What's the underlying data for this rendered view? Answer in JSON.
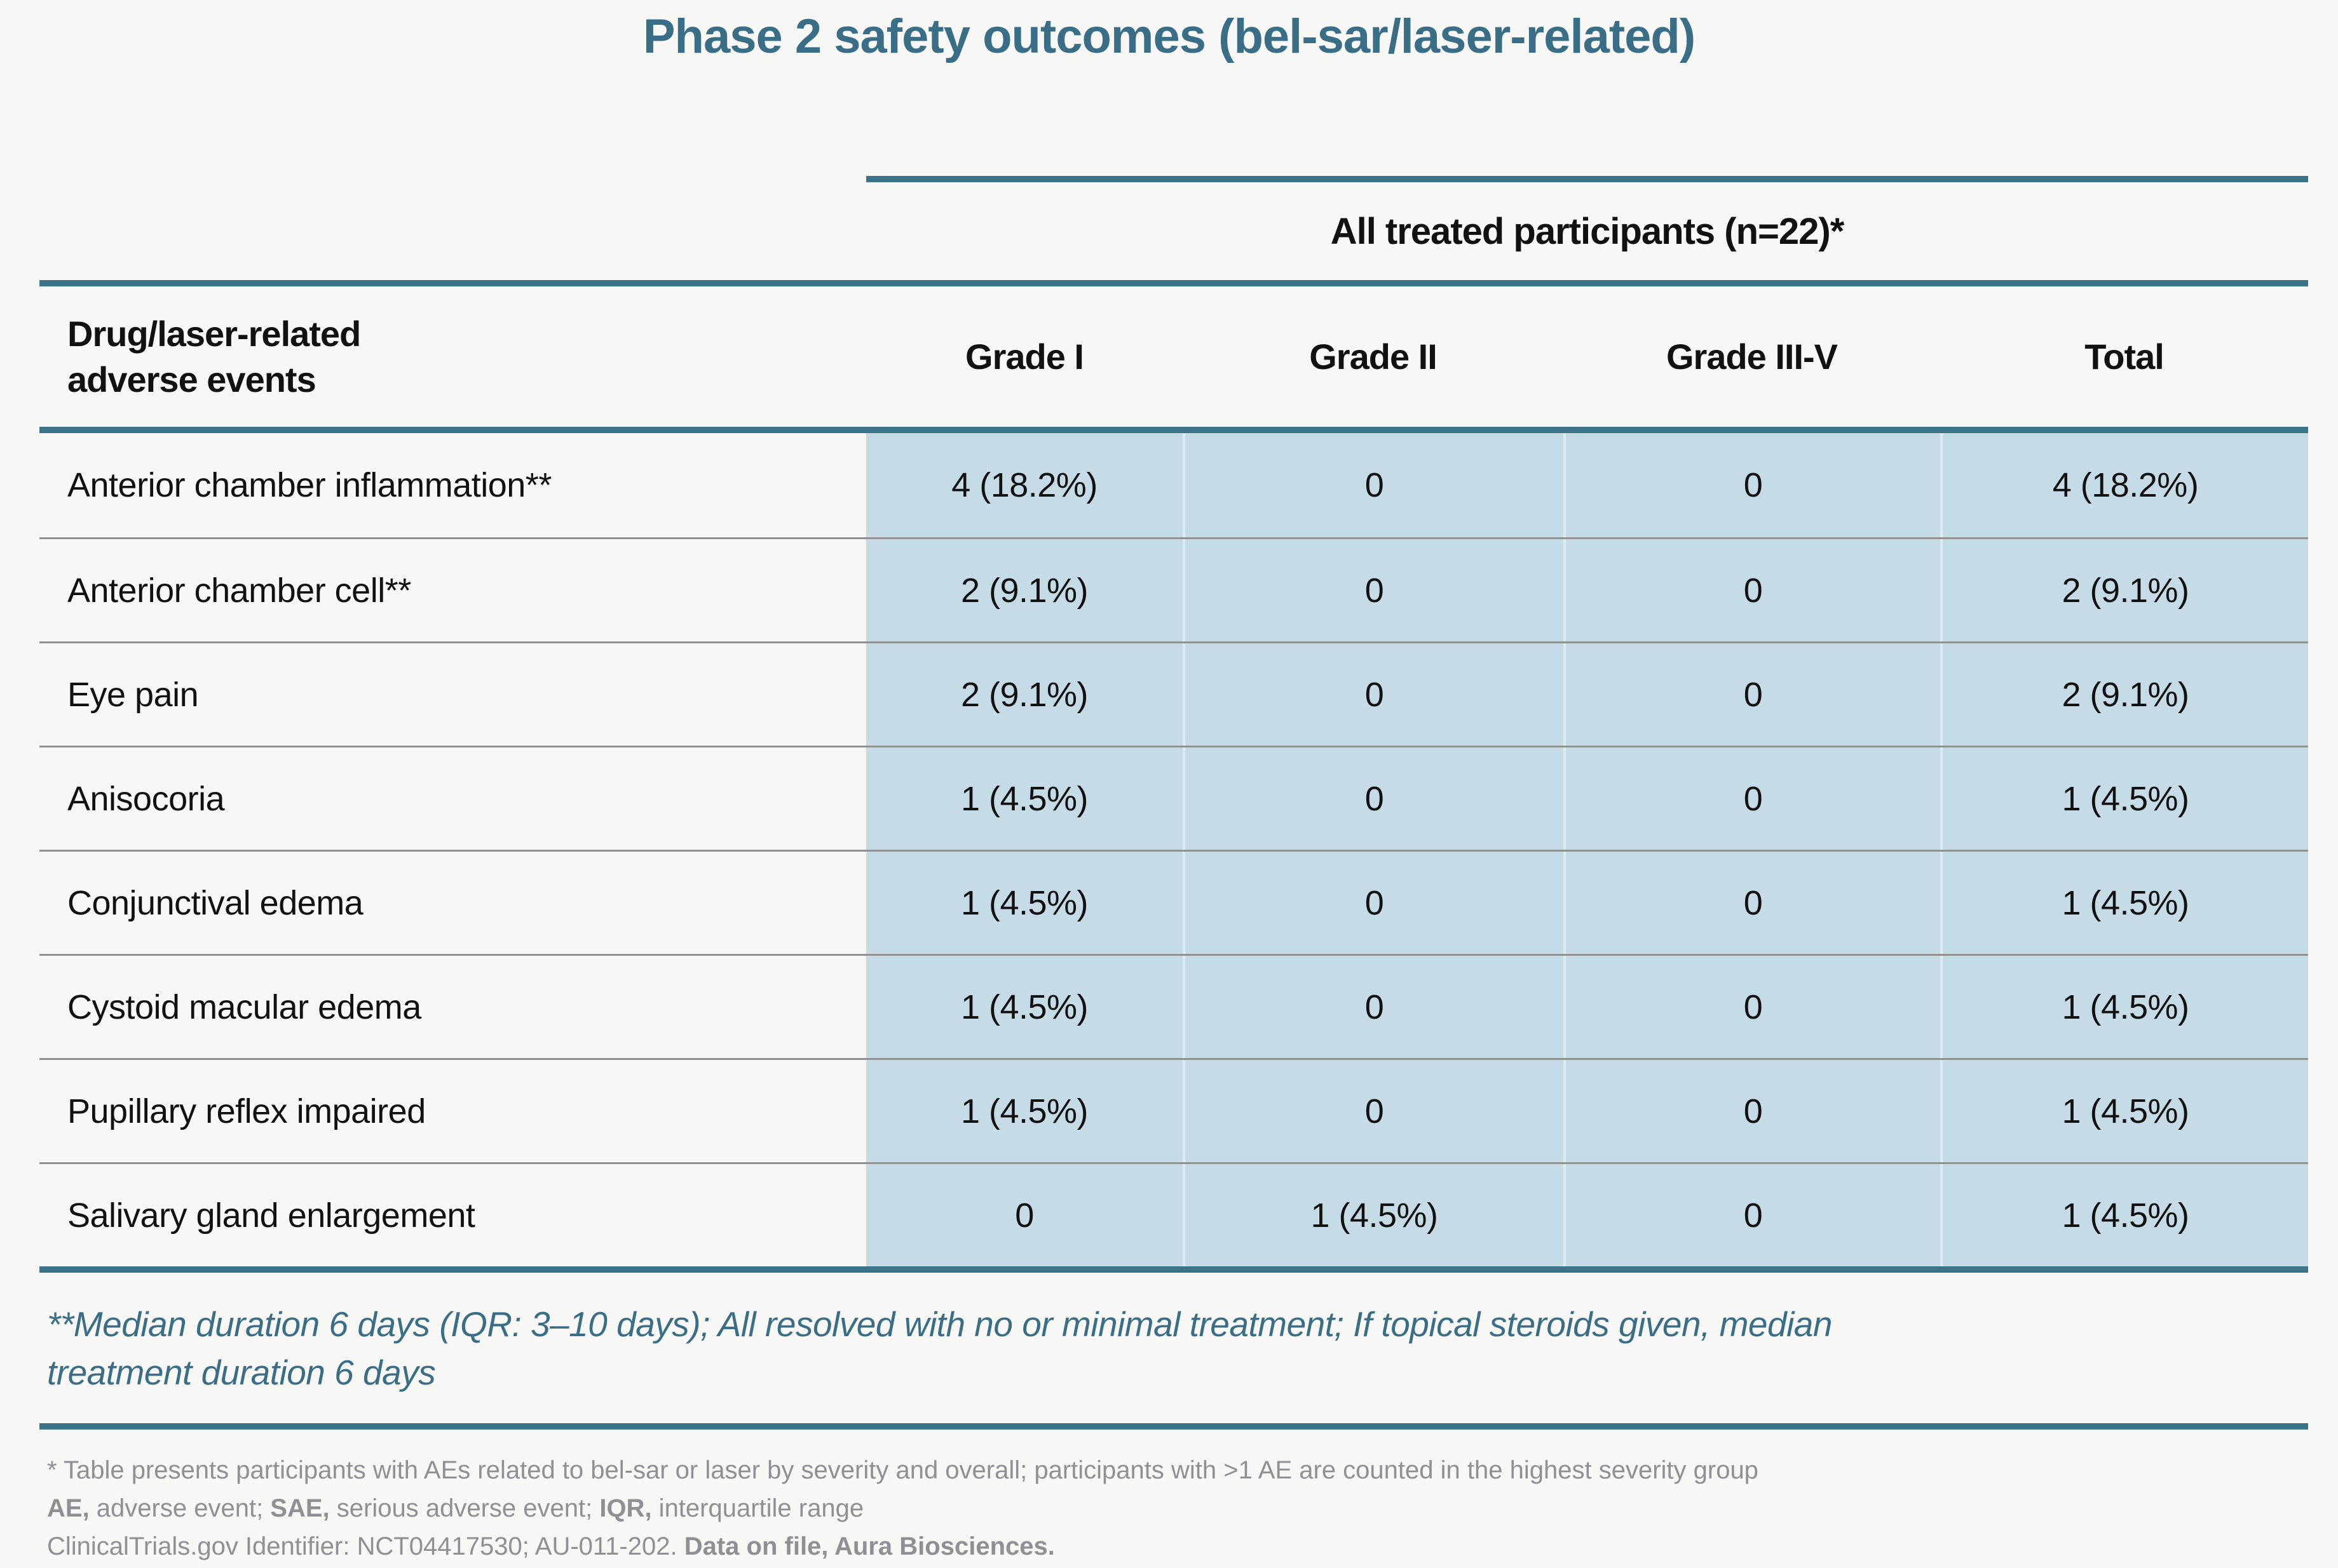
{
  "title": "Phase 2 safety outcomes (bel-sar/laser-related)",
  "table": {
    "group_header": "All treated participants (n=22)*",
    "row_header_line1": "Drug/laser-related",
    "row_header_line2": "adverse events",
    "columns": [
      "Grade I",
      "Grade II",
      "Grade III-V",
      "Total"
    ],
    "rows": [
      {
        "label": "Anterior chamber inflammation**",
        "values": [
          "4 (18.2%)",
          "0",
          "0",
          "4 (18.2%)"
        ]
      },
      {
        "label": "Anterior chamber cell**",
        "values": [
          "2 (9.1%)",
          "0",
          "0",
          "2 (9.1%)"
        ]
      },
      {
        "label": "Eye pain",
        "values": [
          "2 (9.1%)",
          "0",
          "0",
          "2 (9.1%)"
        ]
      },
      {
        "label": "Anisocoria",
        "values": [
          "1 (4.5%)",
          "0",
          "0",
          "1 (4.5%)"
        ]
      },
      {
        "label": "Conjunctival edema",
        "values": [
          "1 (4.5%)",
          "0",
          "0",
          "1 (4.5%)"
        ]
      },
      {
        "label": "Cystoid macular edema",
        "values": [
          "1 (4.5%)",
          "0",
          "0",
          "1 (4.5%)"
        ]
      },
      {
        "label": "Pupillary reflex impaired",
        "values": [
          "1 (4.5%)",
          "0",
          "0",
          "1 (4.5%)"
        ]
      },
      {
        "label": "Salivary gland enlargement",
        "values": [
          "0",
          "1 (4.5%)",
          "0",
          "1 (4.5%)"
        ]
      }
    ]
  },
  "highlight_note": {
    "line1": "**Median duration 6 days (IQR: 3–10 days); All resolved with no or minimal treatment; If topical steroids given, median",
    "line2": "treatment duration 6 days"
  },
  "footnotes": {
    "line1": [
      {
        "t": "* Table presents participants with AEs related to bel-sar or laser by severity and overall; participants with >1 AE are counted in the highest severity group"
      }
    ],
    "line2": [
      {
        "t": "AE,",
        "b": true
      },
      {
        "t": " adverse event; "
      },
      {
        "t": "SAE,",
        "b": true
      },
      {
        "t": " serious adverse event; "
      },
      {
        "t": "IQR,",
        "b": true
      },
      {
        "t": " interquartile range"
      }
    ],
    "line3": [
      {
        "t": "ClinicalTrials.gov Identifier: NCT04417530; AU-011-202. "
      },
      {
        "t": "Data on file, Aura Biosciences.",
        "b": true
      }
    ]
  },
  "colors": {
    "background": "#f7f7f6",
    "title_teal": "#3a6e86",
    "line_teal": "#3d7389",
    "cell_blue": "#c5dce7",
    "row_separator_gray": "#8f9193",
    "footnote_gray": "#8e9093",
    "text_black": "#111111"
  },
  "chart_data": {
    "type": "table",
    "title": "Phase 2 safety outcomes (bel-sar/laser-related)",
    "group_header": "All treated participants (n=22)*",
    "columns": [
      "Drug/laser-related adverse events",
      "Grade I",
      "Grade II",
      "Grade III-V",
      "Total"
    ],
    "rows": [
      [
        "Anterior chamber inflammation**",
        "4 (18.2%)",
        "0",
        "0",
        "4 (18.2%)"
      ],
      [
        "Anterior chamber cell**",
        "2 (9.1%)",
        "0",
        "0",
        "2 (9.1%)"
      ],
      [
        "Eye pain",
        "2 (9.1%)",
        "0",
        "0",
        "2 (9.1%)"
      ],
      [
        "Anisocoria",
        "1 (4.5%)",
        "0",
        "0",
        "1 (4.5%)"
      ],
      [
        "Conjunctival edema",
        "1 (4.5%)",
        "0",
        "0",
        "1 (4.5%)"
      ],
      [
        "Cystoid macular edema",
        "1 (4.5%)",
        "0",
        "0",
        "1 (4.5%)"
      ],
      [
        "Pupillary reflex impaired",
        "1 (4.5%)",
        "0",
        "0",
        "1 (4.5%)"
      ],
      [
        "Salivary gland enlargement",
        "0",
        "1 (4.5%)",
        "0",
        "1 (4.5%)"
      ]
    ],
    "n_total_participants": 22
  }
}
